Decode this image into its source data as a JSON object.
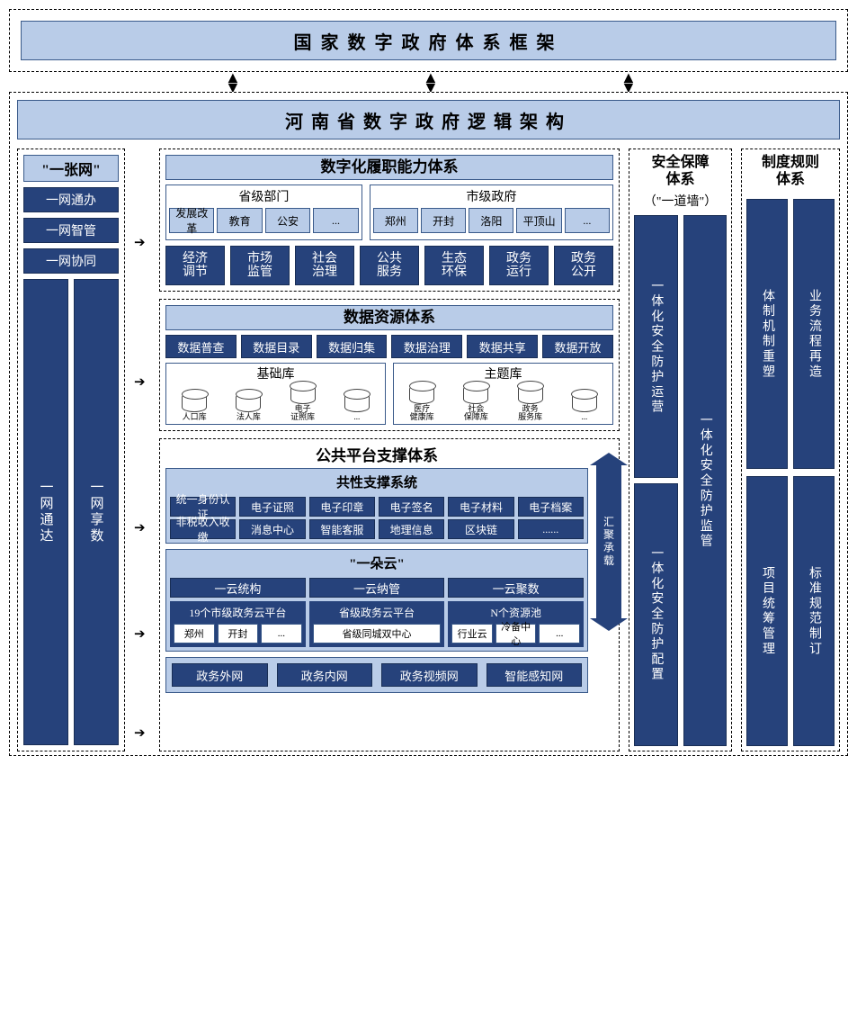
{
  "colors": {
    "light": "#b9cce8",
    "dark": "#26427b",
    "border": "#3a5a8a",
    "text_light": "#ffffff",
    "text_dark": "#000000"
  },
  "top_title": "国家数字政府体系框架",
  "main_title": "河南省数字政府逻辑架构",
  "col1": {
    "title": "\"一张网\"",
    "items": [
      "一网通办",
      "一网智管",
      "一网协同"
    ],
    "tall": [
      "一网通达",
      "一网享数"
    ]
  },
  "secA": {
    "title": "数字化履职能力体系",
    "prov": {
      "title": "省级部门",
      "items": [
        "发展改革",
        "教育",
        "公安",
        "..."
      ]
    },
    "city": {
      "title": "市级政府",
      "items": [
        "郑州",
        "开封",
        "洛阳",
        "平顶山",
        "..."
      ]
    },
    "funcs": [
      "经济\n调节",
      "市场\n监管",
      "社会\n治理",
      "公共\n服务",
      "生态\n环保",
      "政务\n运行",
      "政务\n公开"
    ]
  },
  "secB": {
    "title": "数据资源体系",
    "row": [
      "数据普查",
      "数据目录",
      "数据归集",
      "数据治理",
      "数据共享",
      "数据开放"
    ],
    "base": {
      "title": "基础库",
      "items": [
        "人口库",
        "法人库",
        "电子\n证照库",
        "..."
      ]
    },
    "topic": {
      "title": "主题库",
      "items": [
        "医疗\n健康库",
        "社会\n保障库",
        "政务\n服务库",
        "..."
      ]
    }
  },
  "secC": {
    "outer_title": "公共平台支撑体系",
    "common": {
      "title": "共性支撑系统",
      "r1": [
        "统一身份认证",
        "电子证照",
        "电子印章",
        "电子签名",
        "电子材料",
        "电子档案"
      ],
      "r2": [
        "非税收入收缴",
        "消息中心",
        "智能客服",
        "地理信息",
        "区块链",
        "......"
      ]
    },
    "cloud": {
      "title": "\"一朵云\"",
      "row": [
        "一云统构",
        "一云纳管",
        "一云聚数"
      ],
      "p1": {
        "title": "19个市级政务云平台",
        "items": [
          "郑州",
          "开封",
          "..."
        ]
      },
      "p2": {
        "title": "省级政务云平台",
        "items": [
          "省级同城双中心"
        ]
      },
      "p3": {
        "title": "N个资源池",
        "items": [
          "行业云",
          "冷备中心",
          "..."
        ]
      }
    },
    "nets": [
      "政务外网",
      "政务内网",
      "政务视频网",
      "智能感知网"
    ]
  },
  "big_arrow": "汇聚承载",
  "col3": {
    "title": "安全保障\n体系",
    "sub": "（\"一道墙\"）",
    "items": [
      "一体化安全防护运营",
      "一体化安全防护监管",
      "一体化安全防护配置"
    ]
  },
  "col4": {
    "title": "制度规则\n体系",
    "r1": [
      "体制机制重塑",
      "业务流程再造"
    ],
    "r2": [
      "项目统筹管理",
      "标准规范制订"
    ]
  }
}
